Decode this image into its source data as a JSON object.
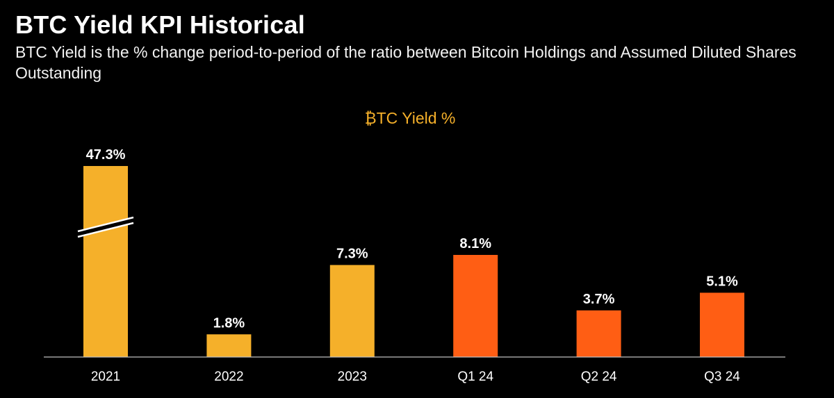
{
  "header": {
    "title": "BTC Yield KPI Historical",
    "subtitle": "BTC Yield is the % change period-to-period of the ratio between Bitcoin Holdings and Assumed Diluted Shares Outstanding"
  },
  "colors": {
    "annual": "#f5b02a",
    "quarterly": "#ff5e14",
    "axis": "#bfbfbf",
    "background": "#000000"
  },
  "chart_data": {
    "type": "bar",
    "title": "₿TC Yield %",
    "xlabel": "",
    "ylabel": "",
    "categories": [
      "2021",
      "2022",
      "2023",
      "Q1 24",
      "Q2 24",
      "Q3 24"
    ],
    "values": [
      47.3,
      1.8,
      7.3,
      8.1,
      3.7,
      5.1
    ],
    "value_labels": [
      "47.3%",
      "1.8%",
      "7.3%",
      "8.1%",
      "3.7%",
      "5.1%"
    ],
    "period_type": [
      "annual",
      "annual",
      "annual",
      "quarterly",
      "quarterly",
      "quarterly"
    ],
    "axis_break": {
      "category": "2021",
      "note": "bar truncated with break marks"
    },
    "ylim": [
      0,
      10.4
    ],
    "grid": false,
    "legend": "none"
  }
}
